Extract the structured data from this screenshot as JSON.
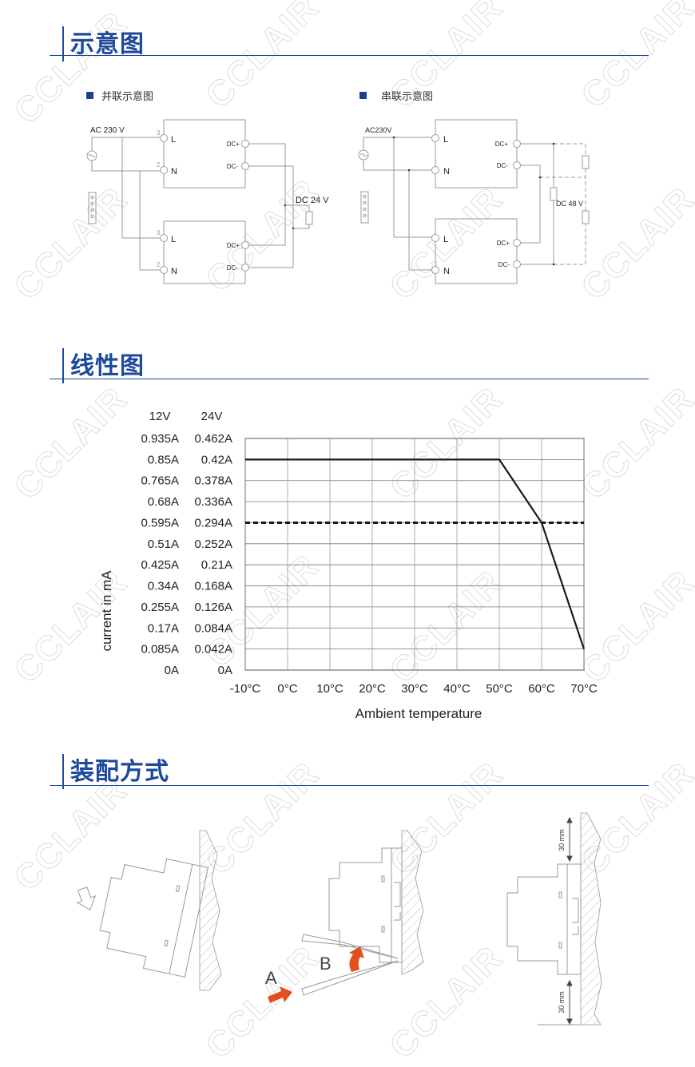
{
  "watermark": "CCLAIR",
  "colors": {
    "accent": "#1d4a9b",
    "arrow": "#e2501f",
    "line": "#9a9a9a"
  },
  "sections": {
    "schematic": {
      "title": "示意图",
      "parallel": {
        "label": "并联示意图",
        "ac_label": "AC 230 V",
        "dc_label": "DC 24 V",
        "pin3": "3",
        "pin2": "2",
        "L": "L",
        "N": "N",
        "dcp": "DC+",
        "dcm": "DC-"
      },
      "series": {
        "label": "串联示意图",
        "ac_label": "AC230V",
        "dc_label": "DC 48 V",
        "L": "L",
        "N": "N",
        "dcp": "DC+",
        "dcm": "DC-"
      }
    },
    "linear": {
      "title": "线性图"
    },
    "mounting": {
      "title": "装配方式",
      "label_a": "A",
      "label_b": "B",
      "clearance_top": "30 mm",
      "clearance_bottom": "30 mm"
    }
  },
  "chart_data": {
    "type": "line",
    "xlabel": "Ambient temperature",
    "ylabel": "current in mA",
    "x_ticks": [
      "-10°C",
      "0°C",
      "10°C",
      "20°C",
      "30°C",
      "40°C",
      "50°C",
      "60°C",
      "70°C"
    ],
    "xlim": [
      -10,
      70
    ],
    "ylim": [
      0,
      0.935
    ],
    "grid": true,
    "y_axis_headers": [
      "12V",
      "24V"
    ],
    "y_ticks_12v": [
      "0.935A",
      "0.85A",
      "0.765A",
      "0.68A",
      "0.595A",
      "0.51A",
      "0.425A",
      "0.34A",
      "0.255A",
      "0.17A",
      "0.085A",
      "0A"
    ],
    "y_ticks_24v": [
      "0.462A",
      "0.42A",
      "0.378A",
      "0.336A",
      "0.294A",
      "0.252A",
      "0.21A",
      "0.168A",
      "0.126A",
      "0.084A",
      "0.042A",
      "0A"
    ],
    "series": [
      {
        "style": "solid",
        "points": [
          [
            -10,
            0.85
          ],
          [
            50,
            0.85
          ],
          [
            60,
            0.595
          ],
          [
            70,
            0.085
          ]
        ]
      },
      {
        "style": "dashed",
        "points": [
          [
            -10,
            0.595
          ],
          [
            70,
            0.595
          ]
        ]
      }
    ]
  }
}
